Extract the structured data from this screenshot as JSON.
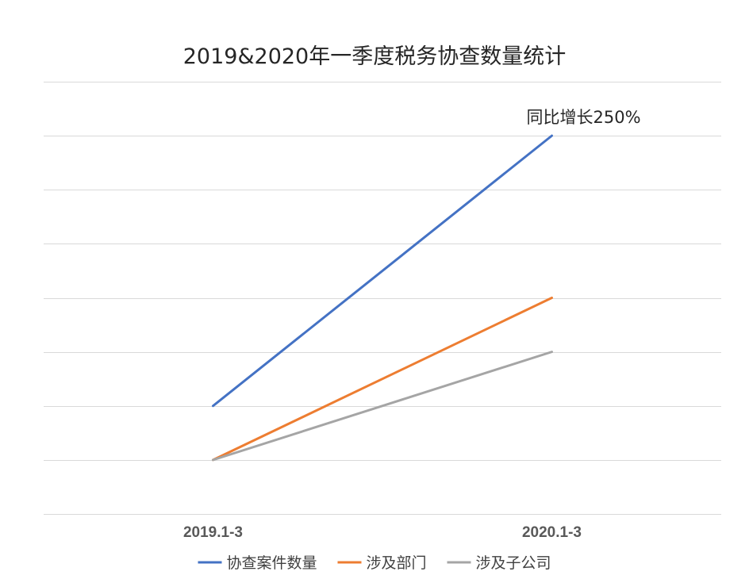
{
  "chart_data": {
    "type": "line",
    "title": "2019&2020年一季度税务协查数量统计",
    "categories": [
      "2019.1-3",
      "2020.1-3"
    ],
    "series": [
      {
        "name": "协查案件数量",
        "values": [
          2,
          7
        ],
        "color": "#4472C4"
      },
      {
        "name": "涉及部门",
        "values": [
          1,
          4
        ],
        "color": "#ED7D31"
      },
      {
        "name": "涉及子公司",
        "values": [
          1,
          3
        ],
        "color": "#A5A5A5"
      }
    ],
    "ylim": [
      0,
      8
    ],
    "grid": true,
    "y_tick_labels_visible": false,
    "legend_position": "bottom",
    "annotations": [
      {
        "text": "同比增长250%",
        "series": "协查案件数量",
        "category": "2020.1-3"
      }
    ]
  }
}
